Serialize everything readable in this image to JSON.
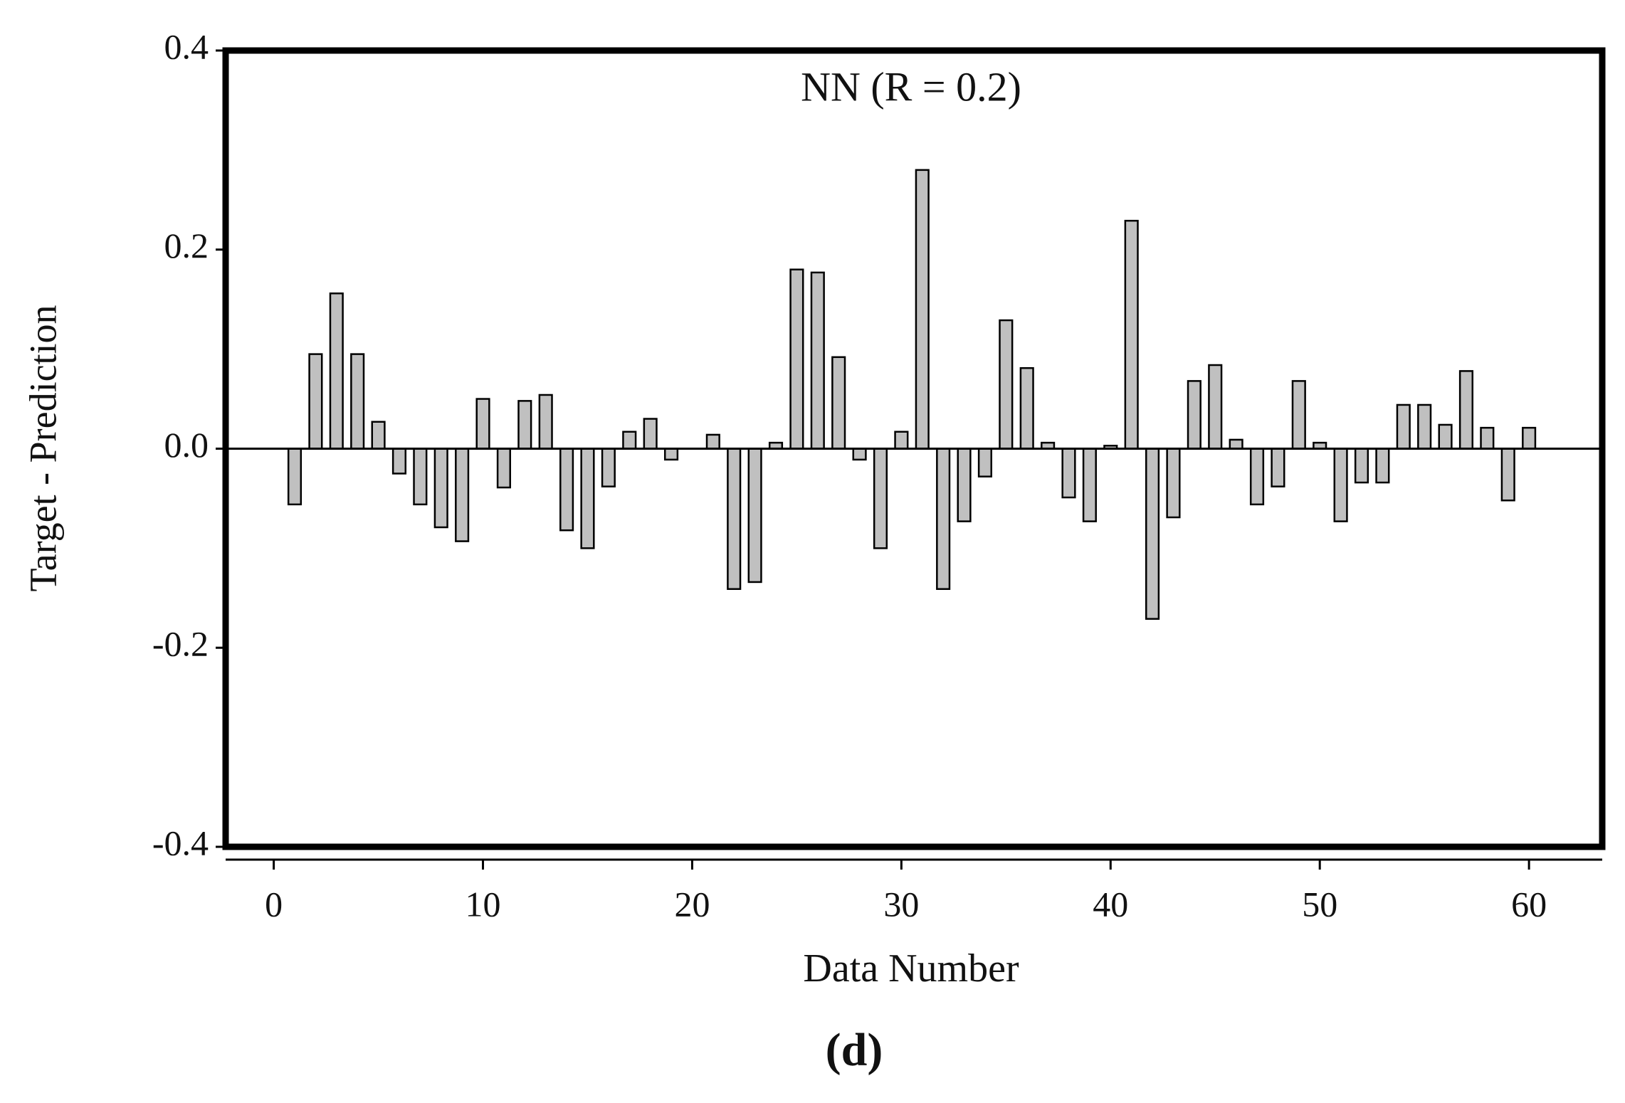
{
  "chart_data": {
    "type": "bar",
    "title": "NN (R = 0.2)",
    "xlabel": "Data Number",
    "ylabel": "Target - Prediction",
    "caption": "(d)",
    "x": [
      1,
      2,
      3,
      4,
      5,
      6,
      7,
      8,
      9,
      10,
      11,
      12,
      13,
      14,
      15,
      16,
      17,
      18,
      19,
      20,
      21,
      22,
      23,
      24,
      25,
      26,
      27,
      28,
      29,
      30,
      31,
      32,
      33,
      34,
      35,
      36,
      37,
      38,
      39,
      40,
      41,
      42,
      43,
      44,
      45,
      46,
      47,
      48,
      49,
      50,
      51,
      52,
      53,
      54,
      55,
      56,
      57,
      58,
      59,
      60
    ],
    "values": [
      -0.056,
      0.095,
      0.156,
      0.095,
      0.027,
      -0.025,
      -0.056,
      -0.079,
      -0.093,
      0.05,
      -0.039,
      0.048,
      0.054,
      -0.082,
      -0.1,
      -0.038,
      0.017,
      0.03,
      -0.011,
      0,
      0.014,
      -0.141,
      -0.134,
      0.006,
      0.18,
      0.177,
      0.092,
      -0.011,
      -0.1,
      0.017,
      0.28,
      -0.141,
      -0.073,
      -0.028,
      0.129,
      0.081,
      0.006,
      -0.049,
      -0.073,
      0.003,
      0.229,
      -0.171,
      -0.069,
      0.068,
      0.084,
      0.009,
      -0.056,
      -0.038,
      0.068,
      0.006,
      -0.073,
      -0.034,
      -0.034,
      0.044,
      0.044,
      0.024,
      0.078,
      0.021,
      -0.052,
      0.021
    ],
    "color": "#c0c0c0",
    "xlim": [
      -2.3,
      63.5
    ],
    "xticks": [
      0,
      10,
      20,
      30,
      40,
      50,
      60
    ],
    "ylim": [
      -0.4,
      0.4
    ],
    "yticks": [
      -0.4,
      -0.2,
      {
        "value": 0,
        "label": "0.0"
      },
      0.2,
      0.4
    ]
  }
}
